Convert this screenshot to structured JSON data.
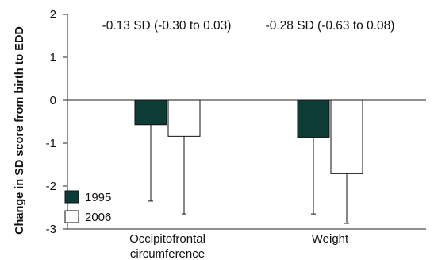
{
  "chart_data": {
    "type": "bar",
    "ylabel": "Change in SD score from birth to EDD",
    "ylim": [
      -3,
      2
    ],
    "yticks": [
      2,
      1,
      0,
      -1,
      -2,
      -3
    ],
    "categories": [
      "Occipitofrontal circumference",
      "Weight"
    ],
    "category_lines": [
      [
        "Occipitofrontal",
        "circumference"
      ],
      [
        "Weight"
      ]
    ],
    "series": [
      {
        "name": "1995",
        "color": "#0d3b36",
        "values": [
          -0.57,
          -0.86
        ],
        "error_lower": [
          -2.35,
          -2.65
        ]
      },
      {
        "name": "2006",
        "color": "#ffffff",
        "values": [
          -0.84,
          -1.71
        ],
        "error_lower": [
          -2.65,
          -2.87
        ]
      }
    ],
    "annotations": [
      "-0.13 SD (-0.30 to 0.03)",
      "-0.28 SD (-0.63 to 0.08)"
    ],
    "legend_position": "bottom-left",
    "grid": false
  }
}
